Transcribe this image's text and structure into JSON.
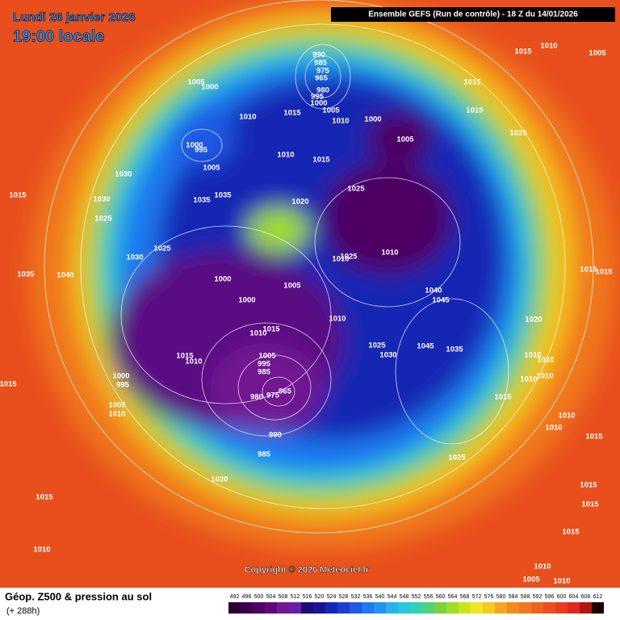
{
  "header": {
    "date": "Lundi 26 janvier 2026",
    "time": "19:00 locale",
    "run": "Ensemble GEFS  (Run de contrôle)  -  18 Z du 14/01/2026"
  },
  "map": {
    "copyright": "Copyright © 2026 Meteociel.fr",
    "pressure_labels": [
      990,
      985,
      975,
      965,
      980,
      995,
      1000,
      1005,
      1015,
      1010,
      1010,
      1000,
      1005,
      1015,
      1015,
      1025,
      1015,
      1010,
      1005,
      1005,
      1000,
      1000,
      995,
      1005,
      1010,
      1015,
      1025,
      1020,
      1030,
      1035,
      1035,
      1030,
      1025,
      1015,
      1025,
      1030,
      1035,
      1040,
      1010,
      1025,
      1010,
      1000,
      1000,
      1005,
      1040,
      1045,
      1010,
      1020,
      1010,
      1015,
      1015,
      1010,
      1005,
      995,
      985,
      1025,
      1030,
      1045,
      1035,
      1010,
      1010,
      1010,
      1010,
      1000,
      995,
      980,
      975,
      965,
      1005,
      1010,
      1015,
      1010,
      1010,
      1015,
      1015,
      990,
      985,
      1025,
      1020,
      1015,
      1015,
      1015,
      1010,
      1015,
      1010,
      1005,
      1010,
      1015,
      1015
    ]
  },
  "footer": {
    "title": "Géop. Z500 & pression au sol",
    "lead": "(+ 288h)"
  },
  "legend": {
    "values": [
      492,
      496,
      500,
      504,
      508,
      512,
      516,
      520,
      524,
      528,
      532,
      536,
      540,
      544,
      548,
      552,
      556,
      560,
      564,
      568,
      572,
      576,
      580,
      584,
      588,
      592,
      596,
      600,
      604,
      608,
      612
    ],
    "colors": [
      "#2a0030",
      "#3c0048",
      "#4e0062",
      "#60087a",
      "#721892",
      "#6a1ea8",
      "#1e0a78",
      "#1a1496",
      "#1428b4",
      "#1e3cd2",
      "#1e5ae6",
      "#1e78f0",
      "#1e96f0",
      "#28b4e6",
      "#28c8dc",
      "#32d2b4",
      "#50d278",
      "#78d23c",
      "#a0dc28",
      "#c8e61e",
      "#f0e61e",
      "#f5c81e",
      "#f5a51e",
      "#f08c1e",
      "#f0781e",
      "#eb641e",
      "#e8501e",
      "#e63c1e",
      "#dc281e",
      "#b41414",
      "#1e0000"
    ]
  }
}
